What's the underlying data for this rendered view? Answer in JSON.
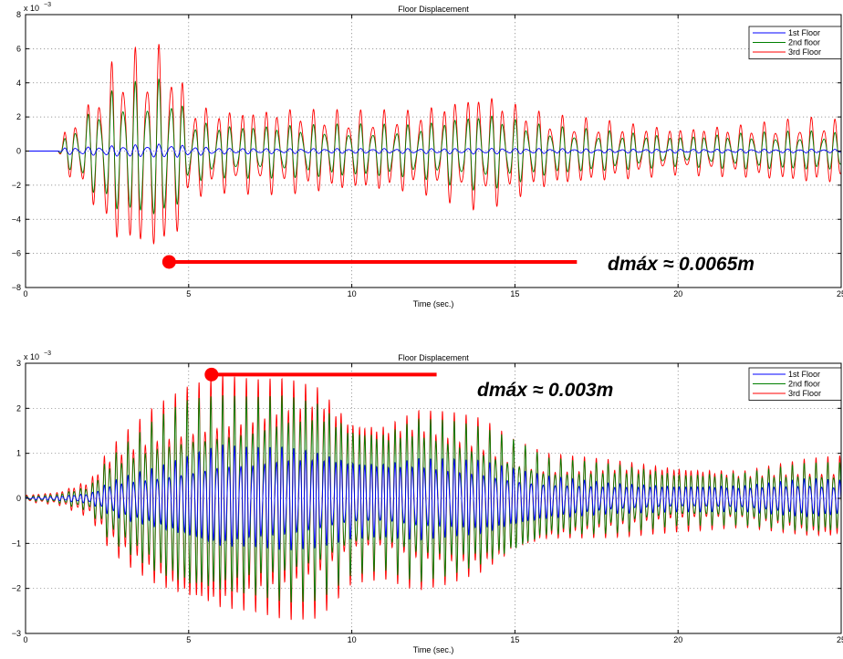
{
  "chart_data": [
    {
      "type": "line",
      "title": "Floor Displacement",
      "xlabel": "Time (sec.)",
      "ylabel": "",
      "y_exponent_label": "x 10",
      "y_exponent_power": "−3",
      "xlim": [
        0,
        25
      ],
      "ylim": [
        -8,
        8
      ],
      "x_ticks": [
        0,
        5,
        10,
        15,
        20,
        25
      ],
      "x_tick_labels": [
        "0",
        "5",
        "10",
        "15",
        "20",
        "25"
      ],
      "y_ticks": [
        -8,
        -6,
        -4,
        -2,
        0,
        2,
        4,
        6,
        8
      ],
      "y_tick_labels": [
        "−8",
        "−6",
        "−4",
        "−2",
        "0",
        "2",
        "4",
        "6",
        "8"
      ],
      "grid": true,
      "legend_position": "top-right",
      "series": [
        {
          "name": "1st Floor",
          "color": "#0000ff",
          "x": [
            0,
            1,
            1.2,
            2,
            2.5,
            3,
            4,
            4.4,
            5,
            6,
            8,
            10,
            12,
            14,
            16,
            18,
            20,
            22,
            24,
            25
          ],
          "envelope": [
            0,
            0,
            0.2,
            0.25,
            0.3,
            0.35,
            0.4,
            0.45,
            0.3,
            0.18,
            0.15,
            0.15,
            0.15,
            0.18,
            0.15,
            0.12,
            0.12,
            0.12,
            0.12,
            0.1
          ]
        },
        {
          "name": "2nd floor",
          "color": "#007f00",
          "x": [
            0,
            1,
            1.2,
            2,
            2.5,
            3,
            4,
            4.4,
            5,
            6,
            8,
            10,
            12,
            14,
            16,
            18,
            20,
            22,
            24,
            25
          ],
          "envelope": [
            0,
            0,
            0.8,
            2.4,
            3.4,
            4.0,
            4.2,
            4.4,
            1.9,
            1.6,
            1.6,
            1.6,
            1.6,
            2.4,
            1.5,
            1.2,
            0.9,
            1.1,
            1.2,
            1.1
          ]
        },
        {
          "name": "3rd Floor",
          "color": "#ff0000",
          "x": [
            0,
            1,
            1.2,
            2,
            2.5,
            3,
            4,
            4.4,
            5,
            6,
            8,
            10,
            12,
            14,
            16,
            18,
            20,
            22,
            24,
            25
          ],
          "envelope": [
            0,
            0,
            1.2,
            3.0,
            5.0,
            6.0,
            6.2,
            6.6,
            2.9,
            2.5,
            2.6,
            2.4,
            2.5,
            3.6,
            2.2,
            1.8,
            1.4,
            1.6,
            2.0,
            1.9
          ]
        }
      ],
      "annotation": {
        "label": "dmáx ≈ 0.0065m",
        "marker_x": 4.4,
        "marker_y": -6.5,
        "line_x_end": 16.9,
        "color": "#ff0000"
      }
    },
    {
      "type": "line",
      "title": "Floor Displacement",
      "xlabel": "Time (sec.)",
      "ylabel": "",
      "y_exponent_label": "x 10",
      "y_exponent_power": "−3",
      "xlim": [
        0,
        25
      ],
      "ylim": [
        -3,
        3
      ],
      "x_ticks": [
        0,
        5,
        10,
        15,
        20,
        25
      ],
      "x_tick_labels": [
        "0",
        "5",
        "10",
        "15",
        "20",
        "25"
      ],
      "y_ticks": [
        -3,
        -2,
        -1,
        0,
        1,
        2,
        3
      ],
      "y_tick_labels": [
        "−3",
        "−2",
        "−1",
        "0",
        "1",
        "2",
        "3"
      ],
      "grid": true,
      "legend_position": "top-right",
      "series": [
        {
          "name": "1st Floor",
          "color": "#0000ff",
          "x": [
            0,
            1,
            2,
            2.5,
            3,
            4,
            5,
            6,
            7,
            8,
            9,
            10,
            11,
            12,
            13,
            14,
            15,
            16,
            18,
            20,
            22,
            24,
            25
          ],
          "envelope": [
            0.02,
            0.05,
            0.12,
            0.35,
            0.5,
            0.7,
            0.95,
            1.2,
            1.15,
            1.2,
            1.1,
            0.9,
            0.85,
            0.95,
            0.9,
            0.85,
            0.65,
            0.5,
            0.35,
            0.3,
            0.3,
            0.45,
            0.4
          ]
        },
        {
          "name": "2nd floor",
          "color": "#007f00",
          "x": [
            0,
            1,
            2,
            2.5,
            3,
            4,
            5,
            6,
            7,
            8,
            9,
            10,
            11,
            12,
            13,
            14,
            15,
            16,
            18,
            20,
            22,
            24,
            25
          ],
          "envelope": [
            0.05,
            0.1,
            0.3,
            0.9,
            1.2,
            1.8,
            2.2,
            2.3,
            2.3,
            2.4,
            2.3,
            1.7,
            1.6,
            1.9,
            1.8,
            1.6,
            1.3,
            0.9,
            0.8,
            0.6,
            0.6,
            0.8,
            0.8
          ]
        },
        {
          "name": "3rd Floor",
          "color": "#ff0000",
          "x": [
            0,
            1,
            2,
            2.5,
            3,
            4,
            5,
            6,
            7,
            8,
            9,
            10,
            11,
            12,
            13,
            14,
            15,
            16,
            18,
            20,
            22,
            24,
            25
          ],
          "envelope": [
            0.08,
            0.15,
            0.45,
            1.1,
            1.5,
            2.1,
            2.5,
            2.75,
            2.7,
            2.8,
            2.7,
            1.9,
            1.8,
            2.1,
            2.0,
            1.8,
            1.3,
            1.0,
            0.9,
            0.75,
            0.65,
            0.9,
            0.95
          ]
        }
      ],
      "annotation": {
        "label": "dmáx ≈ 0.003m",
        "marker_x": 5.7,
        "marker_y": 2.75,
        "line_x_end": 12.6,
        "color": "#ff0000"
      }
    }
  ]
}
